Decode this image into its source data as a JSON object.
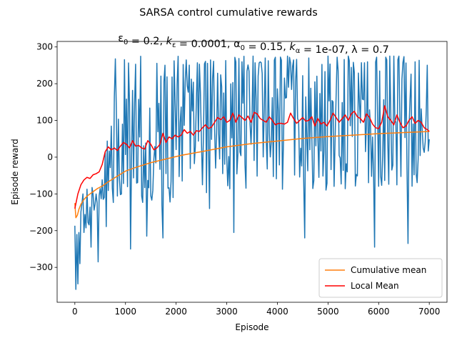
{
  "chart_data": {
    "type": "line",
    "suptitle": "SARSA control cumulative rewards",
    "title": "ε₀ = 0.2, k_ε = 0.0001, α₀ = 0.15, k_α = 1e-07, λ = 0.7",
    "title_parts": [
      {
        "t": "ε",
        "s": "0"
      },
      {
        "t": " = 0.2, "
      },
      {
        "t": "k",
        "s": "ε",
        "i": true
      },
      {
        "t": " = 0.0001, "
      },
      {
        "t": "α",
        "s": "0"
      },
      {
        "t": " = 0.15, "
      },
      {
        "t": "k",
        "s": "α",
        "i": true
      },
      {
        "t": " = 1e-07, "
      },
      {
        "t": "λ"
      },
      {
        "t": " = 0.7"
      }
    ],
    "xlabel": "Episode",
    "ylabel": "Episode reward",
    "xlim": [
      -350,
      7350
    ],
    "ylim": [
      -395,
      315
    ],
    "xticks": [
      0,
      1000,
      2000,
      3000,
      4000,
      5000,
      6000,
      7000
    ],
    "yticks": [
      -300,
      -200,
      -100,
      0,
      100,
      200,
      300
    ],
    "ytick_labels": [
      "−300",
      "−200",
      "−100",
      "0",
      "100",
      "200",
      "300"
    ],
    "legend_position": "lower-right",
    "grid": false,
    "series": [
      {
        "name": "Episode reward",
        "color": "#1f77b4",
        "kind": "raw",
        "seed": 7,
        "anchors": [
          [
            0,
            -150
          ],
          [
            300,
            -130
          ],
          [
            600,
            -60
          ],
          [
            800,
            0
          ],
          [
            1000,
            20
          ],
          [
            2000,
            60
          ],
          [
            3000,
            95
          ],
          [
            4000,
            95
          ],
          [
            5000,
            100
          ],
          [
            6000,
            100
          ],
          [
            7000,
            95
          ]
        ],
        "step": 20,
        "x_end": 7000,
        "clip": [
          -360,
          275
        ],
        "spikes": [
          [
            30,
            -360
          ],
          [
            60,
            -345
          ],
          [
            100,
            -290
          ],
          [
            180,
            -205
          ],
          [
            330,
            -245
          ],
          [
            460,
            -285
          ],
          [
            1100,
            -250
          ],
          [
            1420,
            -215
          ],
          [
            1750,
            -220
          ],
          [
            2660,
            -140
          ],
          [
            3150,
            -205
          ],
          [
            4540,
            -220
          ],
          [
            5920,
            -245
          ],
          [
            6580,
            -235
          ]
        ]
      },
      {
        "name": "Cumulative mean",
        "color": "#ff7f0e",
        "kind": "line",
        "x": [
          0,
          20,
          50,
          80,
          120,
          180,
          250,
          350,
          450,
          550,
          650,
          800,
          1000,
          1200,
          1500,
          1800,
          2100,
          2500,
          3000,
          3500,
          4000,
          4500,
          5000,
          5500,
          6000,
          6500,
          7000
        ],
        "y": [
          -125,
          -165,
          -158,
          -142,
          -128,
          -115,
          -105,
          -95,
          -85,
          -78,
          -68,
          -55,
          -38,
          -28,
          -15,
          -5,
          5,
          15,
          28,
          37,
          44,
          51,
          56,
          60,
          64,
          67,
          70
        ]
      },
      {
        "name": " Local Mean",
        "color": "#ff0000",
        "kind": "line",
        "x": [
          0,
          60,
          120,
          180,
          240,
          300,
          360,
          420,
          480,
          540,
          600,
          660,
          720,
          780,
          840,
          900,
          960,
          1020,
          1080,
          1140,
          1200,
          1260,
          1320,
          1380,
          1440,
          1500,
          1560,
          1620,
          1680,
          1740,
          1800,
          1860,
          1920,
          1980,
          2040,
          2100,
          2160,
          2220,
          2280,
          2340,
          2400,
          2460,
          2520,
          2580,
          2640,
          2700,
          2760,
          2820,
          2880,
          2940,
          3000,
          3060,
          3120,
          3180,
          3240,
          3300,
          3360,
          3420,
          3480,
          3540,
          3600,
          3660,
          3720,
          3780,
          3840,
          3900,
          3960,
          4020,
          4080,
          4140,
          4200,
          4260,
          4320,
          4380,
          4440,
          4500,
          4560,
          4620,
          4680,
          4740,
          4800,
          4860,
          4920,
          4980,
          5040,
          5100,
          5160,
          5220,
          5280,
          5340,
          5400,
          5460,
          5520,
          5580,
          5640,
          5700,
          5760,
          5820,
          5880,
          5940,
          6000,
          6060,
          6120,
          6180,
          6240,
          6300,
          6360,
          6420,
          6480,
          6540,
          6600,
          6660,
          6720,
          6780,
          6840,
          6900,
          6960,
          7000
        ],
        "y": [
          -140,
          -100,
          -75,
          -62,
          -55,
          -58,
          -48,
          -45,
          -40,
          -20,
          15,
          28,
          20,
          25,
          18,
          30,
          40,
          35,
          25,
          45,
          30,
          32,
          25,
          22,
          45,
          35,
          20,
          25,
          35,
          65,
          40,
          55,
          50,
          60,
          55,
          60,
          75,
          65,
          70,
          60,
          72,
          70,
          80,
          88,
          78,
          82,
          95,
          108,
          102,
          110,
          95,
          100,
          120,
          95,
          115,
          108,
          100,
          112,
          95,
          122,
          118,
          105,
          100,
          95,
          110,
          100,
          88,
          92,
          92,
          90,
          95,
          120,
          105,
          92,
          100,
          108,
          98,
          100,
          110,
          85,
          105,
          90,
          95,
          85,
          100,
          120,
          108,
          95,
          105,
          115,
          100,
          118,
          125,
          110,
          105,
          95,
          118,
          108,
          90,
          80,
          78,
          95,
          140,
          110,
          100,
          88,
          115,
          95,
          80,
          85,
          100,
          110,
          92,
          100,
          95,
          80,
          75,
          70
        ]
      }
    ]
  }
}
